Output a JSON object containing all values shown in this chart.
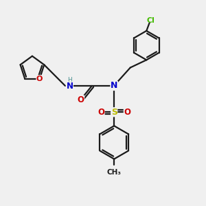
{
  "bg_color": "#f0f0f0",
  "bond_color": "#1a1a1a",
  "O_color": "#cc0000",
  "N_color": "#0000cc",
  "S_color": "#bbbb00",
  "Cl_color": "#44bb00",
  "line_width": 1.6,
  "figsize": [
    3.0,
    3.0
  ],
  "dpi": 100,
  "xlim": [
    0,
    10
  ],
  "ylim": [
    0,
    10
  ]
}
